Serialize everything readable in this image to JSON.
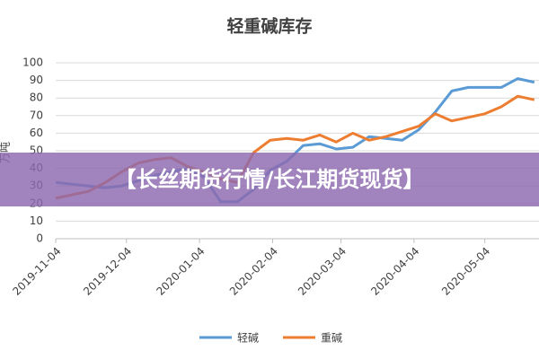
{
  "chart_data": {
    "type": "line",
    "title": "轻重碱库存",
    "y_label": "万吨",
    "annotation": "【长丝期货行情/长江期货现货】",
    "x": [
      "2019-11-04",
      "2019-11-11",
      "2019-11-18",
      "2019-11-25",
      "2019-12-02",
      "2019-12-09",
      "2019-12-16",
      "2019-12-23",
      "2019-12-30",
      "2020-01-06",
      "2020-01-13",
      "2020-01-20",
      "2020-01-27",
      "2020-02-03",
      "2020-02-10",
      "2020-02-17",
      "2020-02-24",
      "2020-03-02",
      "2020-03-09",
      "2020-03-16",
      "2020-03-23",
      "2020-03-30",
      "2020-04-06",
      "2020-04-13",
      "2020-04-20",
      "2020-04-27",
      "2020-05-04",
      "2020-05-11",
      "2020-05-18",
      "2020-05-25"
    ],
    "series": [
      {
        "name": "轻碱",
        "color": "#5b9bd5",
        "values": [
          32,
          31,
          30,
          29,
          30,
          33,
          36,
          38,
          40,
          35,
          21,
          21,
          28,
          39,
          44,
          53,
          54,
          51,
          52,
          58,
          57,
          56,
          62,
          72,
          84,
          86,
          86,
          86,
          91,
          89
        ]
      },
      {
        "name": "重碱",
        "color": "#ed7d31",
        "values": [
          23,
          25,
          27,
          32,
          38,
          43,
          45,
          46,
          41,
          38,
          34,
          32,
          49,
          56,
          57,
          56,
          59,
          55,
          60,
          56,
          58,
          61,
          64,
          71,
          67,
          69,
          71,
          75,
          81,
          79
        ]
      }
    ],
    "xlim": [
      "2019-11-04",
      "2020-05-27"
    ],
    "xticks": [
      "2019-11-04",
      "2019-12-04",
      "2020-01-04",
      "2020-02-04",
      "2020-03-04",
      "2020-04-04",
      "2020-05-04"
    ],
    "ylim": [
      0,
      100
    ],
    "yticks": [
      0,
      10,
      20,
      30,
      40,
      50,
      60,
      70,
      80,
      90,
      100
    ],
    "grid": true,
    "legend": "bottom"
  }
}
